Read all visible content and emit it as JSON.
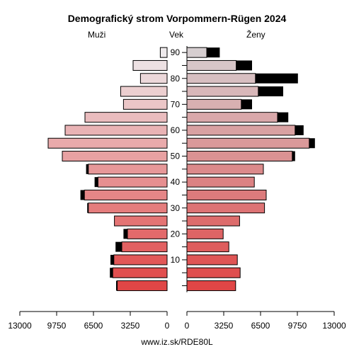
{
  "chart_data": {
    "type": "bar",
    "orientation": "horizontal",
    "title": "Demografický strom Vorpommern-Rügen 2024",
    "left_label": "Muži",
    "center_label": "Vek",
    "right_label": "Ženy",
    "footer": "www.iz.sk/RDE80L",
    "x_max": 13000,
    "x_ticks_left": [
      13000,
      9750,
      6500,
      3250,
      0
    ],
    "x_ticks_right": [
      0,
      3250,
      6500,
      9750,
      13000
    ],
    "age_tick_labels": [
      "90",
      "80",
      "70",
      "60",
      "50",
      "40",
      "30",
      "20",
      "10"
    ],
    "age_groups": [
      "90+",
      "85-89",
      "80-84",
      "75-79",
      "70-74",
      "65-69",
      "60-64",
      "55-59",
      "50-54",
      "45-49",
      "40-44",
      "35-39",
      "30-34",
      "25-29",
      "20-24",
      "15-19",
      "10-14",
      "5-9",
      "0-4"
    ],
    "series": [
      {
        "name": "Muži",
        "values": [
          600,
          3000,
          2350,
          4100,
          3850,
          7250,
          9000,
          10500,
          9250,
          6950,
          6100,
          7300,
          6950,
          4650,
          3500,
          4000,
          4700,
          4800,
          4400
        ],
        "excess": [
          0,
          0,
          0,
          0,
          0,
          0,
          0,
          0,
          0,
          200,
          300,
          350,
          100,
          0,
          350,
          550,
          300,
          250,
          100
        ]
      },
      {
        "name": "Ženy",
        "values": [
          1750,
          4350,
          6050,
          6300,
          4800,
          8000,
          9550,
          10800,
          9300,
          6750,
          5950,
          7000,
          6850,
          4650,
          3200,
          3700,
          4450,
          4700,
          4300
        ],
        "excess": [
          1150,
          1400,
          3750,
          2200,
          950,
          950,
          750,
          500,
          250,
          0,
          0,
          0,
          0,
          0,
          0,
          0,
          0,
          0,
          0
        ]
      }
    ]
  }
}
